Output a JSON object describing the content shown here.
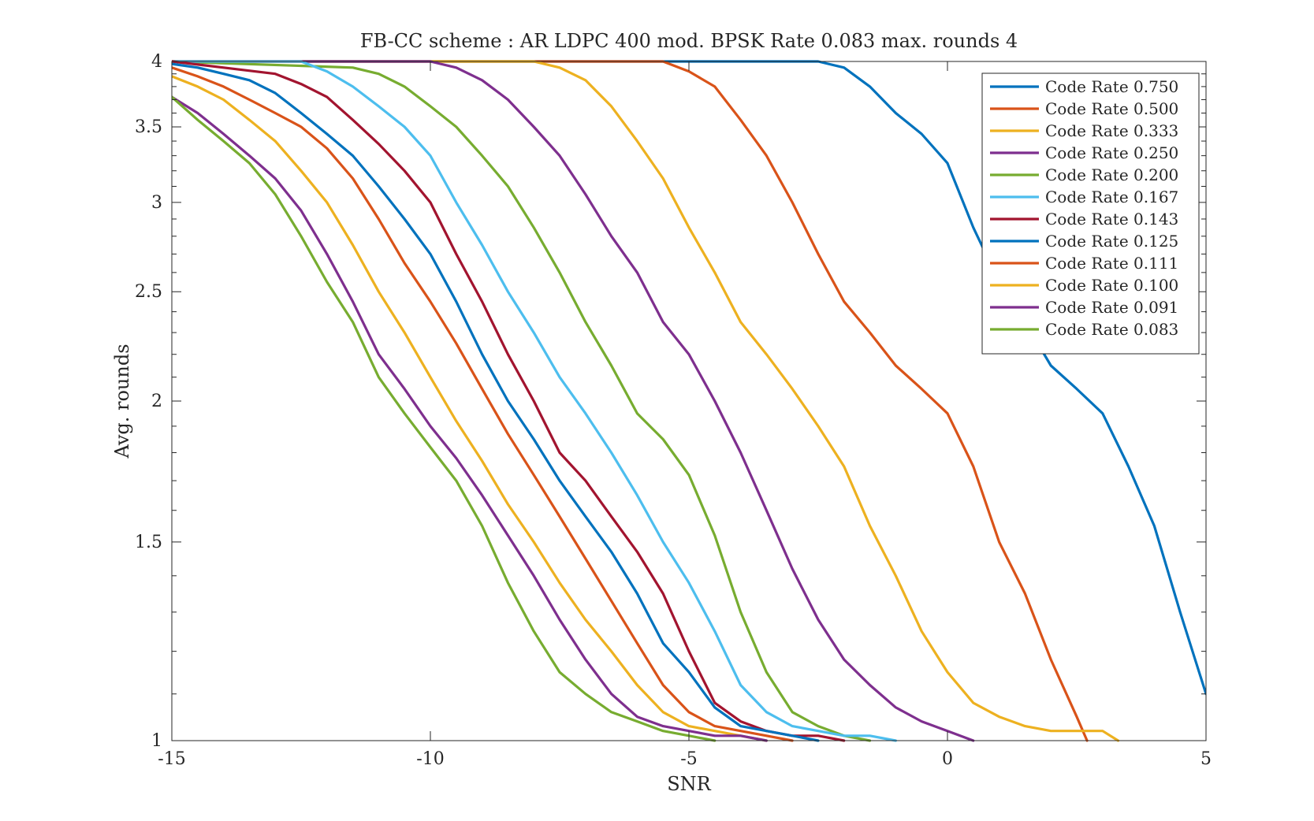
{
  "chart_data": {
    "type": "line",
    "title": "FB-CC scheme : AR LDPC 400 mod. BPSK Rate 0.083 max. rounds 4",
    "xlabel": "SNR",
    "ylabel": "Avg. rounds",
    "xlim": [
      -15,
      5
    ],
    "ylim": [
      1,
      4
    ],
    "yscale": "log",
    "grid": false,
    "legend_position": "top-right",
    "x_ticks": [
      -15,
      -10,
      -5,
      0,
      5
    ],
    "x_tick_labels": [
      "-15",
      "-10",
      "-5",
      "0",
      "5"
    ],
    "y_ticks": [
      1,
      1.5,
      2,
      2.5,
      3,
      3.5,
      4
    ],
    "y_tick_labels": [
      "1",
      "1.5",
      "2",
      "2.5",
      "3",
      "3.5",
      "4"
    ],
    "series": [
      {
        "name": "Code Rate 0.750",
        "color": "#0072BD",
        "x": [
          -15,
          -2.5,
          -2,
          -1.5,
          -1,
          -0.5,
          0,
          0.5,
          1,
          1.5,
          2,
          2.5,
          3,
          3.5,
          4,
          4.5,
          5
        ],
        "y": [
          4,
          4,
          3.95,
          3.8,
          3.6,
          3.45,
          3.25,
          2.85,
          2.55,
          2.35,
          2.15,
          2.05,
          1.95,
          1.75,
          1.55,
          1.3,
          1.1
        ]
      },
      {
        "name": "Code Rate 0.500",
        "color": "#D95319",
        "x": [
          -15,
          -5.5,
          -5,
          -4.5,
          -4,
          -3.5,
          -3,
          -2.5,
          -2,
          -1.5,
          -1,
          -0.5,
          0,
          0.5,
          1,
          1.5,
          2,
          2.5,
          2.7
        ],
        "y": [
          4,
          4,
          3.92,
          3.8,
          3.55,
          3.3,
          3.0,
          2.7,
          2.45,
          2.3,
          2.15,
          2.05,
          1.95,
          1.75,
          1.5,
          1.35,
          1.18,
          1.05,
          1
        ]
      },
      {
        "name": "Code Rate 0.333",
        "color": "#EDB120",
        "x": [
          -15,
          -8,
          -7.5,
          -7,
          -6.5,
          -6,
          -5.5,
          -5,
          -4.5,
          -4,
          -3.5,
          -3,
          -2.5,
          -2,
          -1.5,
          -1,
          -0.5,
          0,
          0.5,
          1,
          1.5,
          2,
          3,
          3.3
        ],
        "y": [
          4,
          4,
          3.95,
          3.85,
          3.65,
          3.4,
          3.15,
          2.85,
          2.6,
          2.35,
          2.2,
          2.05,
          1.9,
          1.75,
          1.55,
          1.4,
          1.25,
          1.15,
          1.08,
          1.05,
          1.03,
          1.02,
          1.02,
          1
        ]
      },
      {
        "name": "Code Rate 0.250",
        "color": "#7E2F8E",
        "x": [
          -15,
          -10,
          -9.5,
          -9,
          -8.5,
          -8,
          -7.5,
          -7,
          -6.5,
          -6,
          -5.5,
          -5,
          -4.5,
          -4,
          -3.5,
          -3,
          -2.5,
          -2,
          -1.5,
          -1,
          -0.5,
          0,
          0.5
        ],
        "y": [
          4,
          4,
          3.95,
          3.85,
          3.7,
          3.5,
          3.3,
          3.05,
          2.8,
          2.6,
          2.35,
          2.2,
          2.0,
          1.8,
          1.6,
          1.42,
          1.28,
          1.18,
          1.12,
          1.07,
          1.04,
          1.02,
          1
        ]
      },
      {
        "name": "Code Rate 0.200",
        "color": "#77AC30",
        "x": [
          -15,
          -11.5,
          -11,
          -10.5,
          -10,
          -9.5,
          -9,
          -8.5,
          -8,
          -7.5,
          -7,
          -6.5,
          -6,
          -5.5,
          -5,
          -4.5,
          -4,
          -3.5,
          -3,
          -2.5,
          -2,
          -1.5
        ],
        "y": [
          4,
          3.95,
          3.9,
          3.8,
          3.65,
          3.5,
          3.3,
          3.1,
          2.85,
          2.6,
          2.35,
          2.15,
          1.95,
          1.85,
          1.72,
          1.52,
          1.3,
          1.15,
          1.06,
          1.03,
          1.01,
          1
        ]
      },
      {
        "name": "Code Rate 0.167",
        "color": "#4DBEEE",
        "x": [
          -15,
          -12.5,
          -12,
          -11.5,
          -11,
          -10.5,
          -10,
          -9.5,
          -9,
          -8.5,
          -8,
          -7.5,
          -7,
          -6.5,
          -6,
          -5.5,
          -5,
          -4.5,
          -4,
          -3.5,
          -3,
          -2.5,
          -2,
          -1.5,
          -1
        ],
        "y": [
          4,
          4,
          3.92,
          3.8,
          3.65,
          3.5,
          3.3,
          3.0,
          2.75,
          2.5,
          2.3,
          2.1,
          1.95,
          1.8,
          1.65,
          1.5,
          1.38,
          1.25,
          1.12,
          1.06,
          1.03,
          1.02,
          1.01,
          1.01,
          1
        ]
      },
      {
        "name": "Code Rate 0.143",
        "color": "#A2142F",
        "x": [
          -15,
          -14,
          -13,
          -12.5,
          -12,
          -11.5,
          -11,
          -10.5,
          -10,
          -9.5,
          -9,
          -8.5,
          -8,
          -7.5,
          -7,
          -6.5,
          -6,
          -5.5,
          -5,
          -4.5,
          -4,
          -3.5,
          -3,
          -2.5,
          -2
        ],
        "y": [
          4,
          3.95,
          3.9,
          3.82,
          3.72,
          3.55,
          3.38,
          3.2,
          3.0,
          2.7,
          2.45,
          2.2,
          2.0,
          1.8,
          1.7,
          1.58,
          1.47,
          1.35,
          1.2,
          1.08,
          1.04,
          1.02,
          1.01,
          1.01,
          1
        ]
      },
      {
        "name": "Code Rate 0.125",
        "color": "#0072BD",
        "x": [
          -15,
          -14.5,
          -14,
          -13.5,
          -13,
          -12.5,
          -12,
          -11.5,
          -11,
          -10.5,
          -10,
          -9.5,
          -9,
          -8.5,
          -8,
          -7.5,
          -7,
          -6.5,
          -6,
          -5.5,
          -5,
          -4.5,
          -4,
          -3.5,
          -3,
          -2.5
        ],
        "y": [
          3.98,
          3.95,
          3.9,
          3.85,
          3.75,
          3.6,
          3.45,
          3.3,
          3.1,
          2.9,
          2.7,
          2.45,
          2.2,
          2.0,
          1.85,
          1.7,
          1.58,
          1.47,
          1.35,
          1.22,
          1.15,
          1.07,
          1.03,
          1.02,
          1.01,
          1
        ]
      },
      {
        "name": "Code Rate 0.111",
        "color": "#D95319",
        "x": [
          -15,
          -14.5,
          -14,
          -13.5,
          -13,
          -12.5,
          -12,
          -11.5,
          -11,
          -10.5,
          -10,
          -9.5,
          -9,
          -8.5,
          -8,
          -7.5,
          -7,
          -6.5,
          -6,
          -5.5,
          -5,
          -4.5,
          -4,
          -3.5,
          -3
        ],
        "y": [
          3.95,
          3.88,
          3.8,
          3.7,
          3.6,
          3.5,
          3.35,
          3.15,
          2.9,
          2.65,
          2.45,
          2.25,
          2.05,
          1.87,
          1.72,
          1.58,
          1.45,
          1.33,
          1.22,
          1.12,
          1.06,
          1.03,
          1.02,
          1.01,
          1
        ]
      },
      {
        "name": "Code Rate 0.100",
        "color": "#EDB120",
        "x": [
          -15,
          -14.5,
          -14,
          -13.5,
          -13,
          -12.5,
          -12,
          -11.5,
          -11,
          -10.5,
          -10,
          -9.5,
          -9,
          -8.5,
          -8,
          -7.5,
          -7,
          -6.5,
          -6,
          -5.5,
          -5,
          -4.5,
          -4,
          -3.5
        ],
        "y": [
          3.88,
          3.8,
          3.7,
          3.55,
          3.4,
          3.2,
          3.0,
          2.75,
          2.5,
          2.3,
          2.1,
          1.92,
          1.77,
          1.62,
          1.5,
          1.38,
          1.28,
          1.2,
          1.12,
          1.06,
          1.03,
          1.02,
          1.01,
          1
        ]
      },
      {
        "name": "Code Rate 0.091",
        "color": "#7E2F8E",
        "x": [
          -15,
          -14.5,
          -14,
          -13.5,
          -13,
          -12.5,
          -12,
          -11.5,
          -11,
          -10.5,
          -10,
          -9.5,
          -9,
          -8.5,
          -8,
          -7.5,
          -7,
          -6.5,
          -6,
          -5.5,
          -5,
          -4.5,
          -4,
          -3.5
        ],
        "y": [
          3.72,
          3.6,
          3.45,
          3.3,
          3.15,
          2.95,
          2.7,
          2.45,
          2.2,
          2.05,
          1.9,
          1.78,
          1.65,
          1.52,
          1.4,
          1.28,
          1.18,
          1.1,
          1.05,
          1.03,
          1.02,
          1.01,
          1.01,
          1
        ]
      },
      {
        "name": "Code Rate 0.083",
        "color": "#77AC30",
        "x": [
          -15,
          -14.5,
          -14,
          -13.5,
          -13,
          -12.5,
          -12,
          -11.5,
          -11,
          -10.5,
          -10,
          -9.5,
          -9,
          -8.5,
          -8,
          -7.5,
          -7,
          -6.5,
          -6,
          -5.5,
          -5,
          -4.5
        ],
        "y": [
          3.72,
          3.55,
          3.4,
          3.25,
          3.05,
          2.8,
          2.55,
          2.35,
          2.1,
          1.95,
          1.82,
          1.7,
          1.55,
          1.38,
          1.25,
          1.15,
          1.1,
          1.06,
          1.04,
          1.02,
          1.01,
          1
        ]
      }
    ]
  }
}
